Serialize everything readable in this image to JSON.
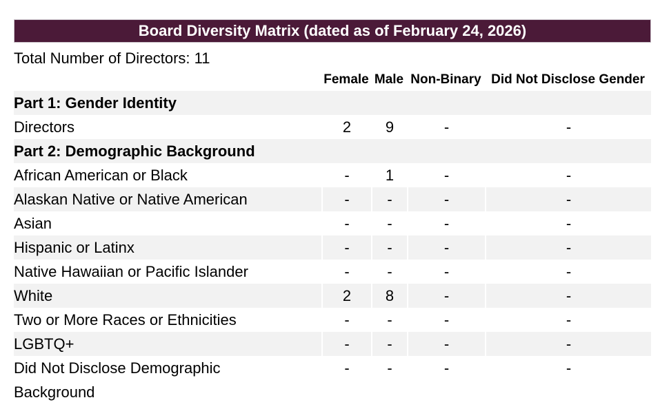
{
  "title_bar": {
    "text": "Board Diversity Matrix (dated as of February 24, 2026)",
    "background_color": "#4B1A38",
    "text_color": "#ffffff",
    "border_color": "#CAC2C9"
  },
  "summary": {
    "text": "Total Number of Directors: 11"
  },
  "table": {
    "stripe_color": "#F2F2F2",
    "headers": [
      "Female",
      "Male",
      "Non-Binary",
      "Did Not Disclose Gender"
    ],
    "rows": [
      {
        "type": "section",
        "label": "Part 1: Gender Identity"
      },
      {
        "type": "data",
        "label": "Directors",
        "values": [
          "2",
          "9",
          "-",
          "-"
        ]
      },
      {
        "type": "section",
        "label": "Part 2: Demographic Background"
      },
      {
        "type": "data",
        "label": "African American or Black",
        "values": [
          "-",
          "1",
          "-",
          "-"
        ]
      },
      {
        "type": "data",
        "label": "Alaskan Native or Native American",
        "values": [
          "-",
          "-",
          "-",
          "-"
        ]
      },
      {
        "type": "data",
        "label": "Asian",
        "values": [
          "-",
          "-",
          "-",
          "-"
        ]
      },
      {
        "type": "data",
        "label": "Hispanic or Latinx",
        "values": [
          "-",
          "-",
          "-",
          "-"
        ]
      },
      {
        "type": "data",
        "label": "Native Hawaiian or Pacific Islander",
        "values": [
          "-",
          "-",
          "-",
          "-"
        ]
      },
      {
        "type": "data",
        "label": "White",
        "values": [
          "2",
          "8",
          "-",
          "-"
        ]
      },
      {
        "type": "data",
        "label": "Two or More Races or Ethnicities",
        "values": [
          "-",
          "-",
          "-",
          "-"
        ]
      },
      {
        "type": "data",
        "label": "LGBTQ+",
        "values": [
          "-",
          "-",
          "-",
          "-"
        ]
      },
      {
        "type": "data",
        "label": "Did Not Disclose Demographic Background",
        "values": [
          "-",
          "-",
          "-",
          "-"
        ]
      }
    ]
  }
}
